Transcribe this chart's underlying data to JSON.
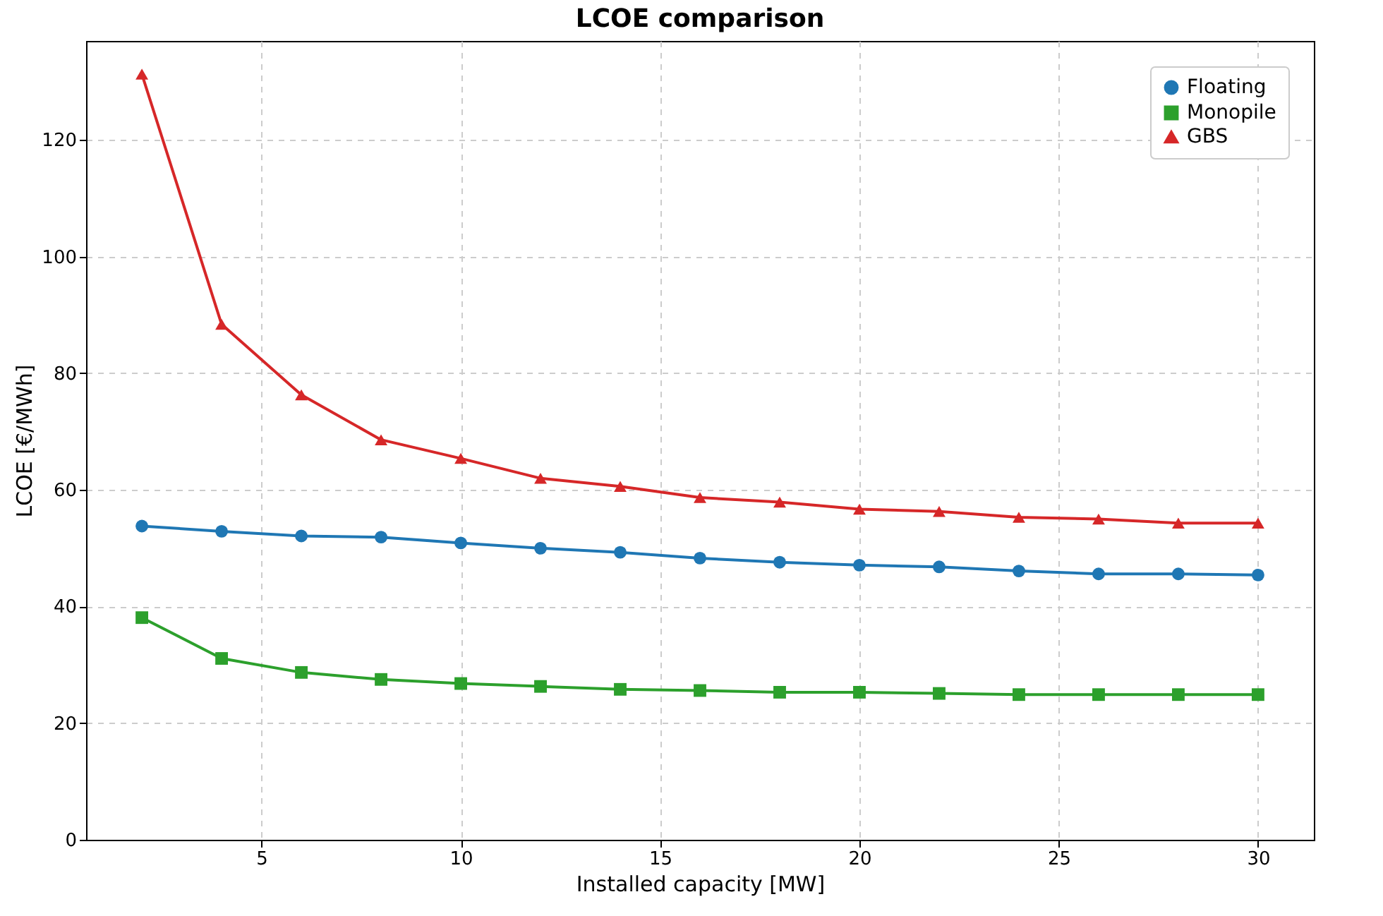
{
  "chart_data": {
    "type": "line",
    "title": "LCOE comparison",
    "xlabel": "Installed capacity [MW]",
    "ylabel": "LCOE [€/MWh]",
    "x": [
      2,
      4,
      6,
      8,
      10,
      12,
      14,
      16,
      18,
      20,
      22,
      24,
      26,
      28,
      30
    ],
    "series": [
      {
        "name": "Floating",
        "color": "#1f77b4",
        "marker": "circle",
        "values": [
          53.8,
          52.9,
          52.1,
          51.9,
          50.9,
          50.0,
          49.3,
          48.3,
          47.6,
          47.1,
          46.8,
          46.1,
          45.6,
          45.6,
          45.4
        ]
      },
      {
        "name": "Monopile",
        "color": "#2ca02c",
        "marker": "square",
        "values": [
          38.1,
          31.1,
          28.7,
          27.5,
          26.8,
          26.3,
          25.8,
          25.6,
          25.3,
          25.3,
          25.1,
          24.9,
          24.9,
          24.9,
          24.9
        ]
      },
      {
        "name": "GBS",
        "color": "#d62728",
        "marker": "triangle",
        "values": [
          131.3,
          88.4,
          76.3,
          68.6,
          65.4,
          62.0,
          60.6,
          58.7,
          57.9,
          56.7,
          56.3,
          55.3,
          55.0,
          54.3,
          54.3
        ]
      }
    ],
    "xlim": [
      0.6,
      31.4
    ],
    "ylim": [
      0,
      137
    ],
    "xticks": [
      5,
      10,
      15,
      20,
      25,
      30
    ],
    "yticks": [
      0,
      20,
      40,
      60,
      80,
      100,
      120
    ],
    "grid": true,
    "legend": "top right",
    "line_style": "solid"
  }
}
